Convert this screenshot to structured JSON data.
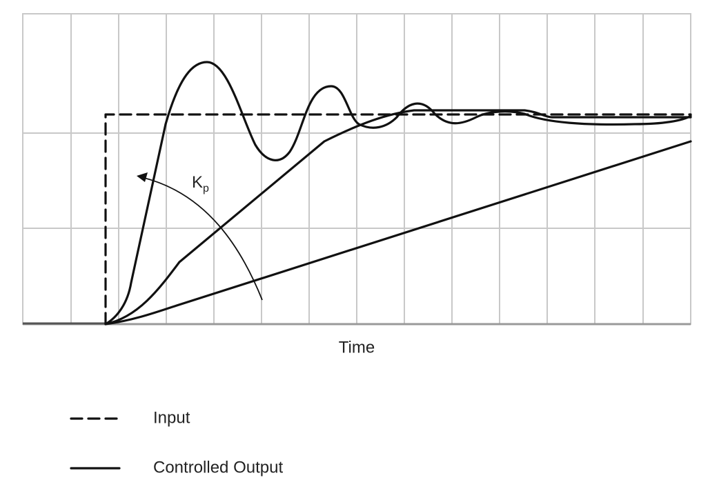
{
  "axis": {
    "x_label": "Time"
  },
  "annotation": {
    "main": "K",
    "sub": "p"
  },
  "legend": {
    "items": [
      "Input",
      "Controlled Output"
    ]
  }
}
